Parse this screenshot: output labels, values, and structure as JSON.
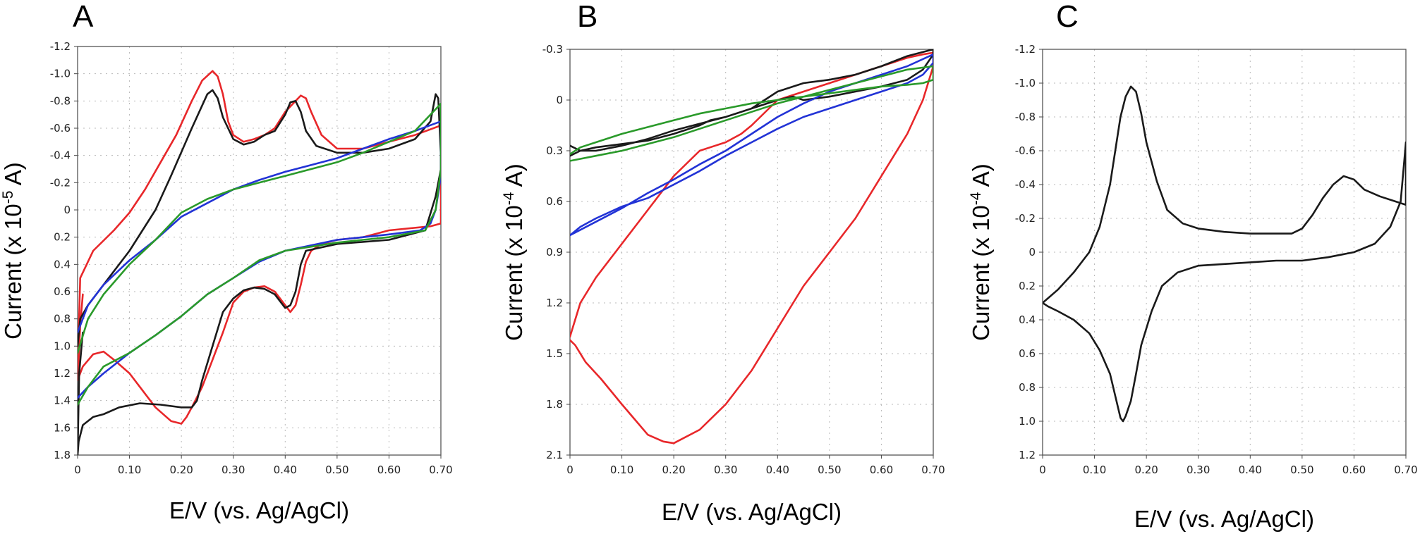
{
  "colors": {
    "red": "#e8272a",
    "black": "#1a1a1a",
    "blue": "#2233d6",
    "green": "#2a9a2a"
  },
  "chart_data": [
    {
      "panel": "A",
      "type": "line",
      "xlabel": "E/V (vs. Ag/AgCl)",
      "ylabel_prefix": "Current (x 10",
      "ylabel_exp": "-5",
      "ylabel_suffix": " A)",
      "xlim": [
        0,
        0.7
      ],
      "ylim": [
        1.8,
        -1.2
      ],
      "xticks": [
        0,
        0.1,
        0.2,
        0.3,
        0.4,
        0.5,
        0.6,
        0.7
      ],
      "xtick_labels": [
        "0",
        "0.10",
        "0.20",
        "0.30",
        "0.40",
        "0.50",
        "0.60",
        "0.70"
      ],
      "yticks": [
        -1.2,
        -1.0,
        -0.8,
        -0.6,
        -0.4,
        -0.2,
        0,
        0.2,
        0.4,
        0.6,
        0.8,
        1.0,
        1.2,
        1.4,
        1.6,
        1.8
      ],
      "ytick_labels": [
        "-1.2",
        "-1.0",
        "-0.8",
        "-0.6",
        "-0.4",
        "-0.2",
        "0",
        "0.2",
        "0.4",
        "0.6",
        "0.8",
        "1.0",
        "1.2",
        "1.4",
        "1.6",
        "1.8"
      ],
      "series": [
        {
          "color": "red",
          "x": [
            0,
            0.005,
            0.03,
            0.07,
            0.1,
            0.13,
            0.16,
            0.19,
            0.22,
            0.24,
            0.26,
            0.27,
            0.28,
            0.29,
            0.3,
            0.32,
            0.34,
            0.36,
            0.38,
            0.4,
            0.42,
            0.43,
            0.44,
            0.45,
            0.47,
            0.5,
            0.55,
            0.6,
            0.65,
            0.7,
            0.7,
            0.68,
            0.6,
            0.55,
            0.5,
            0.47,
            0.45,
            0.44,
            0.43,
            0.42,
            0.41,
            0.4,
            0.38,
            0.36,
            0.34,
            0.32,
            0.3,
            0.28,
            0.26,
            0.24,
            0.22,
            0.21,
            0.2,
            0.18,
            0.15,
            0.12,
            0.1,
            0.07,
            0.05,
            0.03,
            0.01,
            0,
            0.002,
            0.005,
            0.01
          ],
          "y": [
            1.2,
            0.5,
            0.3,
            0.15,
            0.02,
            -0.15,
            -0.35,
            -0.55,
            -0.8,
            -0.95,
            -1.02,
            -0.98,
            -0.85,
            -0.65,
            -0.55,
            -0.5,
            -0.52,
            -0.55,
            -0.6,
            -0.72,
            -0.8,
            -0.84,
            -0.82,
            -0.72,
            -0.55,
            -0.45,
            -0.45,
            -0.5,
            -0.55,
            -0.62,
            0.1,
            0.12,
            0.15,
            0.2,
            0.22,
            0.25,
            0.3,
            0.38,
            0.55,
            0.7,
            0.75,
            0.7,
            0.6,
            0.56,
            0.57,
            0.6,
            0.68,
            0.9,
            1.1,
            1.3,
            1.45,
            1.52,
            1.57,
            1.55,
            1.45,
            1.3,
            1.2,
            1.1,
            1.04,
            1.06,
            1.15,
            1.25,
            1.1,
            0.85,
            0.62
          ]
        },
        {
          "color": "black",
          "x": [
            0,
            0.005,
            0.02,
            0.06,
            0.1,
            0.15,
            0.18,
            0.22,
            0.25,
            0.26,
            0.27,
            0.28,
            0.3,
            0.32,
            0.34,
            0.36,
            0.38,
            0.4,
            0.41,
            0.42,
            0.43,
            0.44,
            0.46,
            0.5,
            0.55,
            0.6,
            0.65,
            0.68,
            0.69,
            0.695,
            0.7,
            0.7,
            0.69,
            0.67,
            0.6,
            0.5,
            0.44,
            0.43,
            0.42,
            0.41,
            0.4,
            0.38,
            0.36,
            0.34,
            0.32,
            0.3,
            0.28,
            0.26,
            0.24,
            0.23,
            0.22,
            0.2,
            0.16,
            0.12,
            0.08,
            0.05,
            0.03,
            0.01,
            0.002,
            0,
            0.003,
            0.01
          ],
          "y": [
            1.0,
            0.8,
            0.7,
            0.5,
            0.3,
            0.0,
            -0.25,
            -0.6,
            -0.85,
            -0.88,
            -0.82,
            -0.68,
            -0.52,
            -0.48,
            -0.5,
            -0.55,
            -0.58,
            -0.7,
            -0.79,
            -0.8,
            -0.72,
            -0.58,
            -0.47,
            -0.42,
            -0.42,
            -0.45,
            -0.52,
            -0.65,
            -0.85,
            -0.82,
            -0.4,
            -0.3,
            -0.1,
            0.15,
            0.22,
            0.25,
            0.3,
            0.4,
            0.6,
            0.7,
            0.72,
            0.62,
            0.58,
            0.57,
            0.59,
            0.65,
            0.75,
            1.0,
            1.25,
            1.4,
            1.45,
            1.45,
            1.43,
            1.42,
            1.45,
            1.5,
            1.52,
            1.58,
            1.7,
            1.8,
            1.2,
            0.9
          ]
        },
        {
          "color": "blue",
          "x": [
            0,
            0.02,
            0.05,
            0.1,
            0.15,
            0.2,
            0.25,
            0.3,
            0.35,
            0.4,
            0.45,
            0.5,
            0.55,
            0.6,
            0.65,
            0.7,
            0.7,
            0.69,
            0.68,
            0.66,
            0.6,
            0.55,
            0.5,
            0.45,
            0.4,
            0.35,
            0.3,
            0.25,
            0.2,
            0.15,
            0.1,
            0.05,
            0.02,
            0
          ],
          "y": [
            0.9,
            0.7,
            0.55,
            0.37,
            0.22,
            0.05,
            -0.05,
            -0.15,
            -0.22,
            -0.28,
            -0.33,
            -0.38,
            -0.45,
            -0.52,
            -0.58,
            -0.65,
            -0.25,
            0.0,
            0.1,
            0.15,
            0.18,
            0.2,
            0.22,
            0.26,
            0.3,
            0.38,
            0.5,
            0.62,
            0.78,
            0.92,
            1.05,
            1.2,
            1.3,
            1.38
          ]
        },
        {
          "color": "green",
          "x": [
            0,
            0.02,
            0.05,
            0.1,
            0.15,
            0.2,
            0.25,
            0.3,
            0.35,
            0.4,
            0.45,
            0.5,
            0.55,
            0.6,
            0.65,
            0.7,
            0.7,
            0.69,
            0.67,
            0.6,
            0.55,
            0.5,
            0.45,
            0.4,
            0.35,
            0.3,
            0.25,
            0.2,
            0.15,
            0.1,
            0.05,
            0.02,
            0
          ],
          "y": [
            1.05,
            0.8,
            0.62,
            0.4,
            0.22,
            0.02,
            -0.08,
            -0.15,
            -0.2,
            -0.25,
            -0.3,
            -0.35,
            -0.42,
            -0.5,
            -0.58,
            -0.78,
            -0.3,
            0.0,
            0.15,
            0.2,
            0.22,
            0.24,
            0.27,
            0.3,
            0.37,
            0.5,
            0.62,
            0.78,
            0.92,
            1.05,
            1.15,
            1.3,
            1.43
          ]
        }
      ]
    },
    {
      "panel": "B",
      "type": "line",
      "xlabel": "E/V (vs. Ag/AgCl)",
      "ylabel_prefix": "Current (x 10",
      "ylabel_exp": "-4",
      "ylabel_suffix": " A)",
      "xlim": [
        0,
        0.7
      ],
      "ylim": [
        2.1,
        -0.3
      ],
      "xticks": [
        0,
        0.1,
        0.2,
        0.3,
        0.4,
        0.5,
        0.6,
        0.7
      ],
      "xtick_labels": [
        "0",
        "0.10",
        "0.20",
        "0.30",
        "0.40",
        "0.50",
        "0.60",
        "0.70"
      ],
      "yticks": [
        -0.3,
        0,
        0.3,
        0.6,
        0.9,
        1.2,
        1.5,
        1.8,
        2.1
      ],
      "ytick_labels": [
        "-0.3",
        "0",
        "0.3",
        "0.6",
        "0.9",
        "1.2",
        "1.5",
        "1.8",
        "2.1"
      ],
      "series": [
        {
          "color": "red",
          "x": [
            0,
            0.02,
            0.05,
            0.1,
            0.15,
            0.2,
            0.25,
            0.3,
            0.33,
            0.35,
            0.4,
            0.45,
            0.5,
            0.55,
            0.6,
            0.65,
            0.68,
            0.7,
            0.7,
            0.68,
            0.65,
            0.6,
            0.55,
            0.5,
            0.45,
            0.42,
            0.4,
            0.35,
            0.3,
            0.25,
            0.2,
            0.18,
            0.15,
            0.1,
            0.06,
            0.03,
            0.01,
            0
          ],
          "y": [
            1.4,
            1.2,
            1.05,
            0.85,
            0.65,
            0.45,
            0.3,
            0.25,
            0.2,
            0.15,
            0.0,
            -0.05,
            -0.1,
            -0.15,
            -0.2,
            -0.25,
            -0.27,
            -0.28,
            -0.2,
            0.0,
            0.2,
            0.45,
            0.7,
            0.9,
            1.1,
            1.25,
            1.35,
            1.6,
            1.8,
            1.95,
            2.03,
            2.02,
            1.98,
            1.8,
            1.65,
            1.55,
            1.45,
            1.42
          ]
        },
        {
          "color": "black",
          "x": [
            0,
            0.02,
            0.05,
            0.1,
            0.15,
            0.2,
            0.25,
            0.27,
            0.3,
            0.35,
            0.4,
            0.45,
            0.5,
            0.55,
            0.6,
            0.65,
            0.7,
            0.7,
            0.68,
            0.65,
            0.6,
            0.55,
            0.5,
            0.45,
            0.43,
            0.4,
            0.35,
            0.3,
            0.25,
            0.2,
            0.15,
            0.1,
            0.05,
            0.02,
            0
          ],
          "y": [
            0.33,
            0.3,
            0.28,
            0.26,
            0.24,
            0.2,
            0.15,
            0.12,
            0.1,
            0.05,
            -0.05,
            -0.1,
            -0.12,
            -0.15,
            -0.2,
            -0.26,
            -0.3,
            -0.27,
            -0.18,
            -0.12,
            -0.08,
            -0.05,
            -0.02,
            0.0,
            -0.02,
            0.0,
            0.05,
            0.1,
            0.14,
            0.18,
            0.23,
            0.27,
            0.3,
            0.3,
            0.27
          ]
        },
        {
          "color": "blue",
          "x": [
            0,
            0.05,
            0.1,
            0.15,
            0.2,
            0.25,
            0.3,
            0.35,
            0.4,
            0.45,
            0.5,
            0.55,
            0.6,
            0.65,
            0.7,
            0.7,
            0.68,
            0.65,
            0.6,
            0.55,
            0.5,
            0.45,
            0.4,
            0.35,
            0.3,
            0.25,
            0.2,
            0.15,
            0.1,
            0.05,
            0.02,
            0
          ],
          "y": [
            0.8,
            0.72,
            0.64,
            0.55,
            0.47,
            0.38,
            0.3,
            0.2,
            0.1,
            0.02,
            -0.05,
            -0.1,
            -0.15,
            -0.2,
            -0.27,
            -0.22,
            -0.15,
            -0.1,
            -0.05,
            0.0,
            0.05,
            0.1,
            0.17,
            0.25,
            0.33,
            0.42,
            0.5,
            0.58,
            0.63,
            0.7,
            0.75,
            0.8
          ]
        },
        {
          "color": "green",
          "x": [
            0,
            0.05,
            0.1,
            0.15,
            0.2,
            0.25,
            0.3,
            0.35,
            0.4,
            0.45,
            0.5,
            0.55,
            0.6,
            0.65,
            0.7,
            0.7,
            0.68,
            0.65,
            0.6,
            0.55,
            0.5,
            0.45,
            0.4,
            0.35,
            0.3,
            0.25,
            0.2,
            0.15,
            0.1,
            0.05,
            0.02,
            0
          ],
          "y": [
            0.36,
            0.33,
            0.3,
            0.26,
            0.22,
            0.17,
            0.12,
            0.07,
            0.02,
            -0.02,
            -0.06,
            -0.1,
            -0.14,
            -0.18,
            -0.2,
            -0.12,
            -0.1,
            -0.09,
            -0.08,
            -0.06,
            -0.04,
            -0.02,
            0.0,
            0.02,
            0.05,
            0.08,
            0.12,
            0.16,
            0.2,
            0.25,
            0.28,
            0.32
          ]
        }
      ]
    },
    {
      "panel": "C",
      "type": "line",
      "xlabel": "E/V (vs. Ag/AgCl)",
      "ylabel_prefix": "Current (x 10",
      "ylabel_exp": "-4",
      "ylabel_suffix": " A)",
      "xlim": [
        0,
        0.7
      ],
      "ylim": [
        1.2,
        -1.2
      ],
      "xticks": [
        0,
        0.1,
        0.2,
        0.3,
        0.4,
        0.5,
        0.6,
        0.7
      ],
      "xtick_labels": [
        "0",
        "0.10",
        "0.20",
        "0.30",
        "0.40",
        "0.50",
        "0.60",
        "0.70"
      ],
      "yticks": [
        -1.2,
        -1.0,
        -0.8,
        -0.6,
        -0.4,
        -0.2,
        0,
        0.2,
        0.4,
        0.6,
        0.8,
        1.0,
        1.2
      ],
      "ytick_labels": [
        "-1.2",
        "-1.0",
        "-0.8",
        "-0.6",
        "-0.4",
        "-0.2",
        "0",
        "0.2",
        "0.4",
        "0.6",
        "0.8",
        "1.0",
        "1.2"
      ],
      "series": [
        {
          "color": "black",
          "x": [
            0,
            0.03,
            0.06,
            0.09,
            0.11,
            0.13,
            0.14,
            0.15,
            0.16,
            0.17,
            0.18,
            0.19,
            0.2,
            0.22,
            0.24,
            0.27,
            0.3,
            0.35,
            0.4,
            0.45,
            0.48,
            0.5,
            0.52,
            0.54,
            0.56,
            0.58,
            0.6,
            0.62,
            0.65,
            0.68,
            0.7,
            0.7,
            0.69,
            0.67,
            0.64,
            0.6,
            0.55,
            0.5,
            0.45,
            0.4,
            0.35,
            0.3,
            0.26,
            0.23,
            0.21,
            0.19,
            0.18,
            0.17,
            0.16,
            0.155,
            0.15,
            0.14,
            0.13,
            0.11,
            0.09,
            0.06,
            0.03,
            0.01,
            0
          ],
          "y": [
            0.3,
            0.22,
            0.12,
            0.0,
            -0.15,
            -0.4,
            -0.6,
            -0.8,
            -0.92,
            -0.98,
            -0.95,
            -0.82,
            -0.65,
            -0.42,
            -0.25,
            -0.17,
            -0.14,
            -0.12,
            -0.11,
            -0.11,
            -0.11,
            -0.14,
            -0.22,
            -0.32,
            -0.4,
            -0.45,
            -0.43,
            -0.37,
            -0.33,
            -0.3,
            -0.28,
            -0.65,
            -0.3,
            -0.15,
            -0.05,
            0.0,
            0.03,
            0.05,
            0.05,
            0.06,
            0.07,
            0.08,
            0.12,
            0.2,
            0.35,
            0.55,
            0.72,
            0.88,
            0.97,
            1.0,
            0.98,
            0.85,
            0.72,
            0.58,
            0.48,
            0.4,
            0.35,
            0.32,
            0.3
          ]
        }
      ]
    }
  ]
}
